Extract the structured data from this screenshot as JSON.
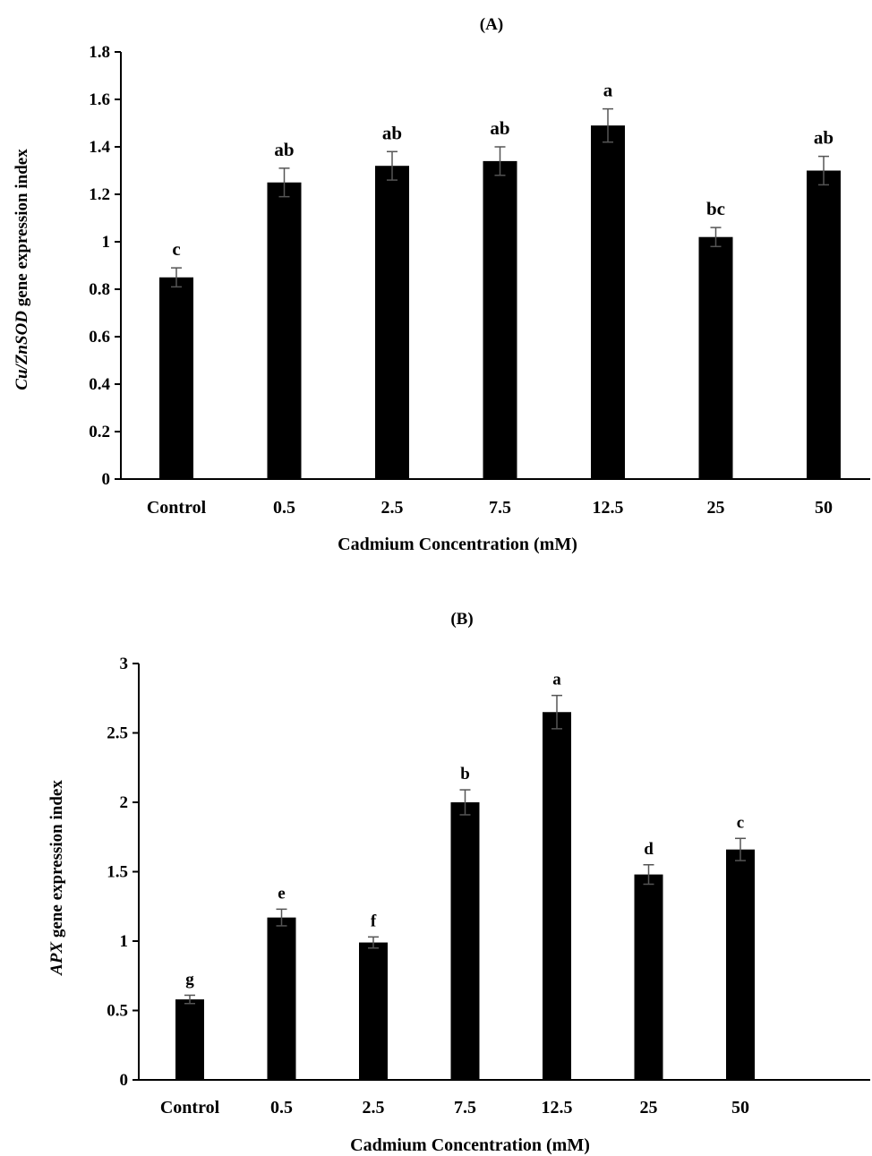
{
  "chart_data": [
    {
      "type": "bar",
      "title": "(A)",
      "categories": [
        "Control",
        "0.5",
        "2.5",
        "7.5",
        "12.5",
        "25",
        "50"
      ],
      "values": [
        0.85,
        1.25,
        1.32,
        1.34,
        1.49,
        1.02,
        1.3
      ],
      "errors": [
        0.04,
        0.06,
        0.06,
        0.06,
        0.07,
        0.04,
        0.06
      ],
      "significance": [
        "c",
        "ab",
        "ab",
        "ab",
        "a",
        "bc",
        "ab"
      ],
      "xlabel": "Cadmium Concentration (mM)",
      "ylabel_italic": "Cu/ZnSOD",
      "ylabel_rest": " gene expression index",
      "ylim": [
        0,
        1.8
      ],
      "yticks": [
        "0",
        "0.2",
        "0.4",
        "0.6",
        "0.8",
        "1",
        "1.2",
        "1.4",
        "1.6",
        "1.8"
      ],
      "bar_color": "#000000",
      "grid": false
    },
    {
      "type": "bar",
      "title": "(B)",
      "categories": [
        "Control",
        "0.5",
        "2.5",
        "7.5",
        "12.5",
        "25",
        "50"
      ],
      "values": [
        0.58,
        1.17,
        0.99,
        2.0,
        2.65,
        1.48,
        1.66
      ],
      "errors": [
        0.03,
        0.06,
        0.04,
        0.09,
        0.12,
        0.07,
        0.08
      ],
      "significance": [
        "g",
        "e",
        "f",
        "b",
        "a",
        "d",
        "c"
      ],
      "xlabel": "Cadmium Concentration (mM)",
      "ylabel_italic": "APX",
      "ylabel_rest": " gene expression index",
      "ylim": [
        0,
        3
      ],
      "yticks": [
        "0",
        "0.5",
        "1",
        "1.5",
        "2",
        "2.5",
        "3"
      ],
      "bar_color": "#000000",
      "grid": false
    }
  ]
}
